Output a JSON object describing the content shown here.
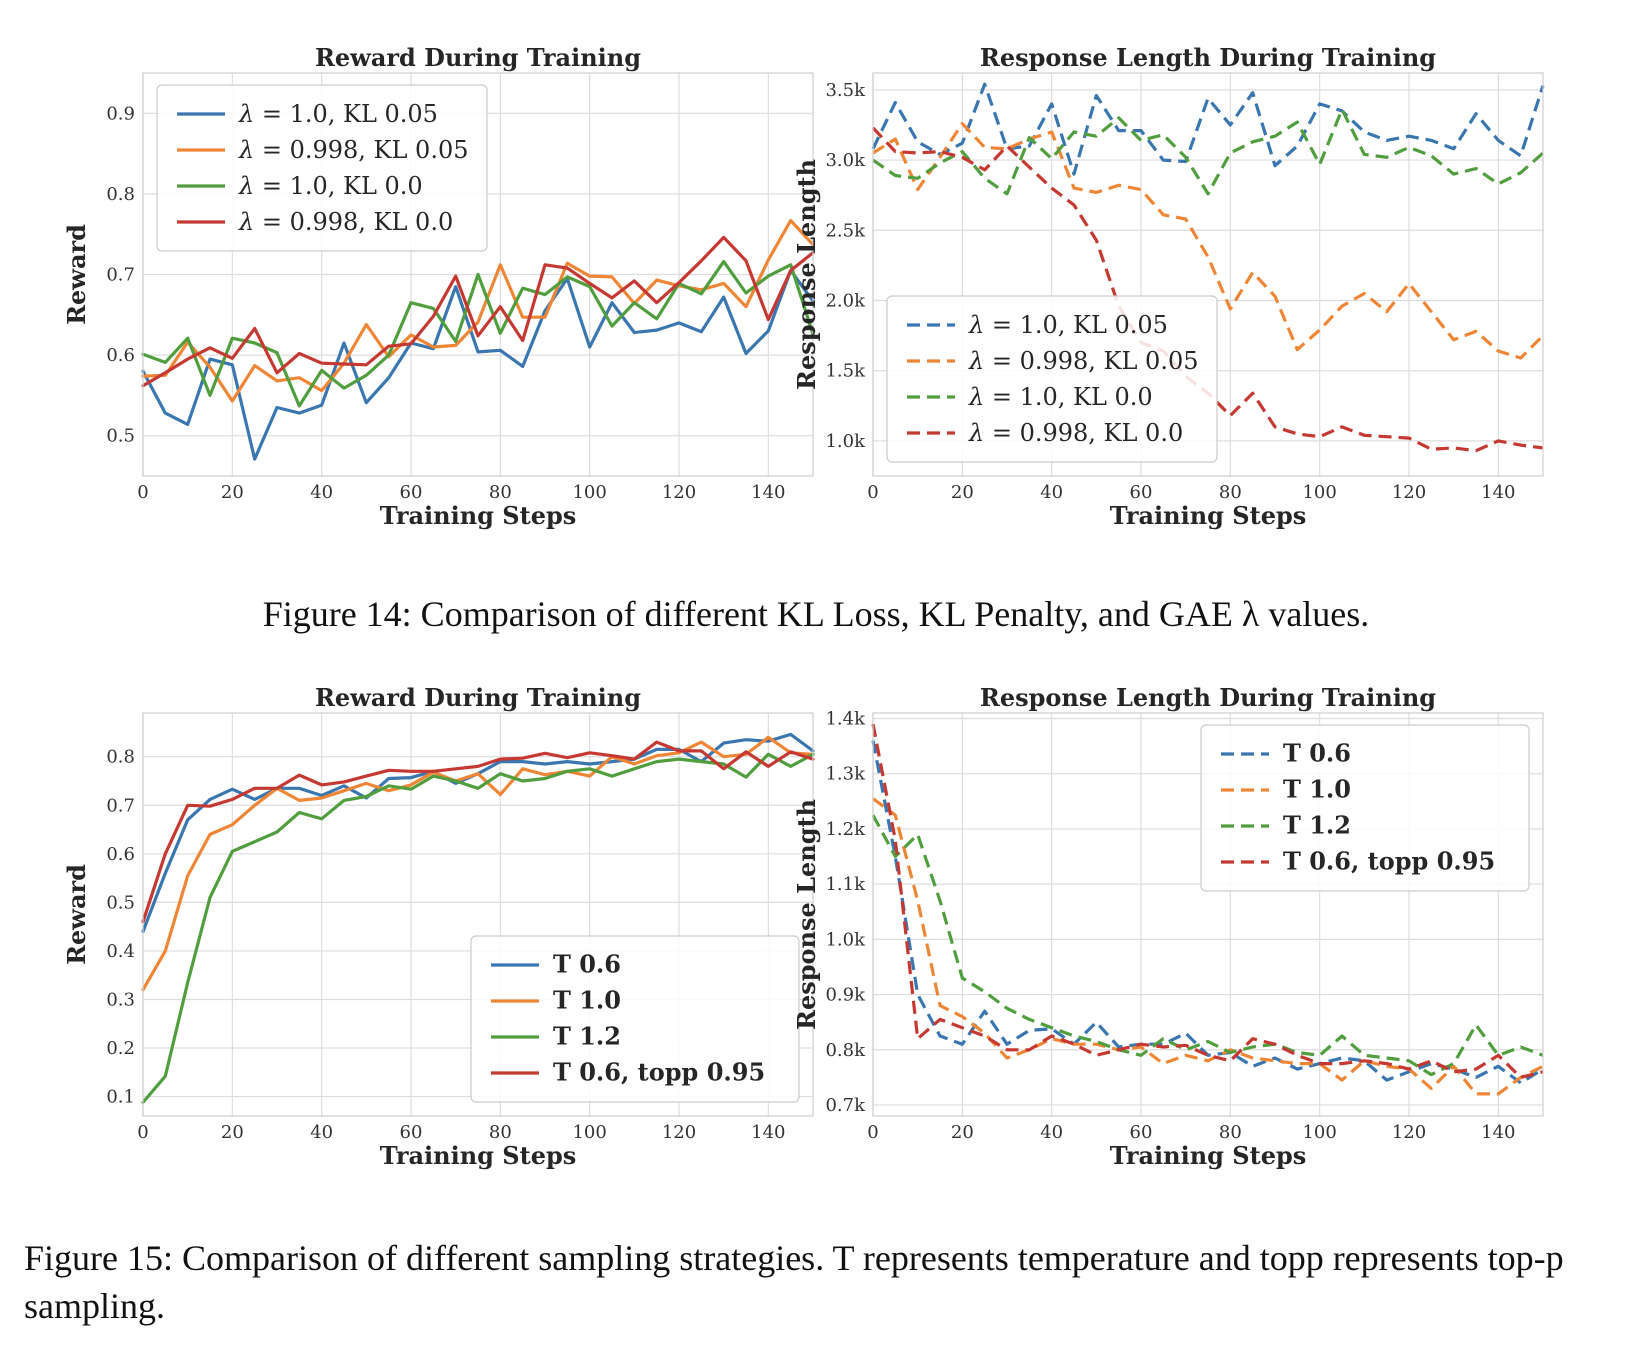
{
  "figures": [
    {
      "caption": "Figure 14: Comparison of different KL Loss, KL Penalty, and GAE λ values."
    },
    {
      "caption": "Figure 15: Comparison of different sampling strategies. T represents temperature and topp represents top-p sampling."
    }
  ],
  "colors": {
    "blue": "#3a76af",
    "orange": "#ef8636",
    "green": "#519e3e",
    "red": "#c53932"
  },
  "chart_data": [
    {
      "type": "line",
      "title": "Reward During Training",
      "xlabel": "Training Steps",
      "ylabel": "Reward",
      "xlim": [
        0,
        150
      ],
      "ylim": [
        0.45,
        0.95
      ],
      "xticks": [
        0,
        20,
        40,
        60,
        80,
        100,
        120,
        140
      ],
      "yticks": [
        0.5,
        0.6,
        0.7,
        0.8,
        0.9
      ],
      "ytick_labels": [
        "0.5",
        "0.6",
        "0.7",
        "0.8",
        "0.9"
      ],
      "grid": true,
      "legend_position": "top-left",
      "legend_style": "mixed",
      "x": [
        0,
        5,
        10,
        15,
        20,
        25,
        30,
        35,
        40,
        45,
        50,
        55,
        60,
        65,
        70,
        75,
        80,
        85,
        90,
        95,
        100,
        105,
        110,
        115,
        120,
        125,
        130,
        135,
        140,
        145,
        150
      ],
      "series": [
        {
          "name": "λ = 1.0, KL 0.05",
          "color": "#3a76af",
          "dash": false,
          "values": [
            0.58,
            0.528,
            0.514,
            0.595,
            0.588,
            0.471,
            0.535,
            0.528,
            0.538,
            0.615,
            0.541,
            0.572,
            0.615,
            0.608,
            0.685,
            0.604,
            0.606,
            0.586,
            0.655,
            0.695,
            0.61,
            0.665,
            0.628,
            0.631,
            0.64,
            0.629,
            0.672,
            0.602,
            0.63,
            0.705,
            0.667
          ]
        },
        {
          "name": "λ = 0.998, KL 0.05",
          "color": "#ef8636",
          "dash": false,
          "values": [
            0.574,
            0.575,
            0.616,
            0.585,
            0.543,
            0.587,
            0.568,
            0.572,
            0.556,
            0.59,
            0.638,
            0.598,
            0.625,
            0.61,
            0.612,
            0.641,
            0.712,
            0.647,
            0.647,
            0.714,
            0.698,
            0.697,
            0.664,
            0.693,
            0.686,
            0.681,
            0.689,
            0.66,
            0.718,
            0.767,
            0.737
          ]
        },
        {
          "name": "λ = 1.0, KL 0.0",
          "color": "#519e3e",
          "dash": false,
          "values": [
            0.601,
            0.591,
            0.621,
            0.55,
            0.621,
            0.615,
            0.603,
            0.537,
            0.581,
            0.559,
            0.575,
            0.6,
            0.665,
            0.658,
            0.617,
            0.7,
            0.627,
            0.683,
            0.675,
            0.697,
            0.685,
            0.636,
            0.665,
            0.645,
            0.689,
            0.676,
            0.716,
            0.677,
            0.698,
            0.712,
            0.626
          ]
        },
        {
          "name": "λ = 0.998, KL 0.0",
          "color": "#c53932",
          "dash": false,
          "values": [
            0.562,
            0.578,
            0.595,
            0.609,
            0.596,
            0.633,
            0.578,
            0.602,
            0.59,
            0.589,
            0.588,
            0.611,
            0.614,
            0.648,
            0.698,
            0.624,
            0.66,
            0.618,
            0.712,
            0.708,
            0.689,
            0.671,
            0.692,
            0.665,
            0.69,
            0.717,
            0.746,
            0.717,
            0.644,
            0.705,
            0.727
          ]
        }
      ]
    },
    {
      "type": "line",
      "title": "Response Length During Training",
      "xlabel": "Training Steps",
      "ylabel": "Response Length",
      "xlim": [
        0,
        150
      ],
      "ylim": [
        750,
        3620
      ],
      "xticks": [
        0,
        20,
        40,
        60,
        80,
        100,
        120,
        140
      ],
      "yticks": [
        1000,
        1500,
        2000,
        2500,
        3000,
        3500
      ],
      "ytick_labels": [
        "1.0k",
        "1.5k",
        "2.0k",
        "2.5k",
        "3.0k",
        "3.5k"
      ],
      "grid": true,
      "legend_position": "bottom-left",
      "legend_style": "mixed",
      "x": [
        0,
        5,
        10,
        15,
        20,
        25,
        30,
        35,
        40,
        45,
        50,
        55,
        60,
        65,
        70,
        75,
        80,
        85,
        90,
        95,
        100,
        105,
        110,
        115,
        120,
        125,
        130,
        135,
        140,
        145,
        150
      ],
      "series": [
        {
          "name": "λ = 1.0, KL 0.05",
          "color": "#3a76af",
          "dash": true,
          "values": [
            3080,
            3410,
            3130,
            3040,
            3120,
            3540,
            3080,
            3100,
            3400,
            2900,
            3460,
            3210,
            3210,
            3000,
            2990,
            3440,
            3250,
            3480,
            2960,
            3100,
            3400,
            3350,
            3200,
            3140,
            3170,
            3140,
            3080,
            3330,
            3140,
            3030,
            3530
          ]
        },
        {
          "name": "λ = 0.998, KL 0.05",
          "color": "#ef8636",
          "dash": true,
          "values": [
            3050,
            3150,
            2790,
            3020,
            3260,
            3090,
            3080,
            3150,
            3200,
            2800,
            2770,
            2820,
            2790,
            2610,
            2580,
            2310,
            1940,
            2200,
            2030,
            1650,
            1790,
            1960,
            2050,
            1920,
            2120,
            1920,
            1720,
            1780,
            1640,
            1590,
            1750
          ]
        },
        {
          "name": "λ = 1.0, KL 0.0",
          "color": "#519e3e",
          "dash": true,
          "values": [
            3000,
            2890,
            2870,
            2980,
            3060,
            2870,
            2760,
            3160,
            3010,
            3200,
            3170,
            3300,
            3140,
            3180,
            3020,
            2760,
            3050,
            3130,
            3170,
            3270,
            2970,
            3360,
            3040,
            3020,
            3090,
            3030,
            2900,
            2940,
            2830,
            2910,
            3050
          ]
        },
        {
          "name": "λ = 0.998, KL 0.0",
          "color": "#c53932",
          "dash": true,
          "values": [
            3230,
            3060,
            3050,
            3060,
            3020,
            2930,
            3100,
            2950,
            2800,
            2680,
            2430,
            1960,
            1700,
            1640,
            1460,
            1340,
            1180,
            1340,
            1100,
            1050,
            1030,
            1100,
            1040,
            1030,
            1020,
            940,
            950,
            930,
            1000,
            970,
            950
          ]
        }
      ]
    },
    {
      "type": "line",
      "title": "Reward During Training",
      "xlabel": "Training Steps",
      "ylabel": "Reward",
      "xlim": [
        0,
        150
      ],
      "ylim": [
        0.06,
        0.89
      ],
      "xticks": [
        0,
        20,
        40,
        60,
        80,
        100,
        120,
        140
      ],
      "yticks": [
        0.1,
        0.2,
        0.3,
        0.4,
        0.5,
        0.6,
        0.7,
        0.8
      ],
      "ytick_labels": [
        "0.1",
        "0.2",
        "0.3",
        "0.4",
        "0.5",
        "0.6",
        "0.7",
        "0.8"
      ],
      "grid": true,
      "legend_position": "bottom-right",
      "legend_style": "bold",
      "x": [
        0,
        5,
        10,
        15,
        20,
        25,
        30,
        35,
        40,
        45,
        50,
        55,
        60,
        65,
        70,
        75,
        80,
        85,
        90,
        95,
        100,
        105,
        110,
        115,
        120,
        125,
        130,
        135,
        140,
        145,
        150
      ],
      "series": [
        {
          "name": "T 0.6",
          "color": "#3a76af",
          "dash": false,
          "values": [
            0.44,
            0.56,
            0.67,
            0.712,
            0.733,
            0.712,
            0.735,
            0.735,
            0.72,
            0.74,
            0.715,
            0.755,
            0.757,
            0.77,
            0.745,
            0.765,
            0.79,
            0.79,
            0.785,
            0.79,
            0.785,
            0.79,
            0.795,
            0.815,
            0.815,
            0.79,
            0.828,
            0.835,
            0.832,
            0.846,
            0.812
          ]
        },
        {
          "name": "T 1.0",
          "color": "#ef8636",
          "dash": false,
          "values": [
            0.32,
            0.4,
            0.555,
            0.64,
            0.66,
            0.7,
            0.735,
            0.71,
            0.715,
            0.73,
            0.745,
            0.73,
            0.742,
            0.768,
            0.75,
            0.765,
            0.722,
            0.775,
            0.763,
            0.77,
            0.76,
            0.8,
            0.785,
            0.802,
            0.808,
            0.83,
            0.8,
            0.805,
            0.84,
            0.808,
            0.805
          ]
        },
        {
          "name": "T 1.2",
          "color": "#519e3e",
          "dash": false,
          "values": [
            0.088,
            0.142,
            0.335,
            0.51,
            0.605,
            0.625,
            0.645,
            0.685,
            0.672,
            0.71,
            0.718,
            0.74,
            0.733,
            0.76,
            0.75,
            0.735,
            0.765,
            0.75,
            0.755,
            0.77,
            0.775,
            0.76,
            0.775,
            0.79,
            0.795,
            0.79,
            0.785,
            0.758,
            0.805,
            0.78,
            0.805
          ]
        },
        {
          "name": "T 0.6, topp 0.95",
          "color": "#c53932",
          "dash": false,
          "values": [
            0.46,
            0.6,
            0.7,
            0.698,
            0.712,
            0.735,
            0.735,
            0.762,
            0.742,
            0.748,
            0.76,
            0.772,
            0.77,
            0.77,
            0.775,
            0.78,
            0.795,
            0.797,
            0.807,
            0.798,
            0.808,
            0.802,
            0.795,
            0.83,
            0.812,
            0.812,
            0.775,
            0.81,
            0.78,
            0.81,
            0.795
          ]
        }
      ]
    },
    {
      "type": "line",
      "title": "Response Length During Training",
      "xlabel": "Training Steps",
      "ylabel": "Response Length",
      "xlim": [
        0,
        150
      ],
      "ylim": [
        680,
        1410
      ],
      "xticks": [
        0,
        20,
        40,
        60,
        80,
        100,
        120,
        140
      ],
      "yticks": [
        700,
        800,
        900,
        1000,
        1100,
        1200,
        1300,
        1400
      ],
      "ytick_labels": [
        "0.7k",
        "0.8k",
        "0.9k",
        "1.0k",
        "1.1k",
        "1.2k",
        "1.3k",
        "1.4k"
      ],
      "grid": true,
      "legend_position": "top-right",
      "legend_style": "bold",
      "x": [
        0,
        5,
        10,
        15,
        20,
        25,
        30,
        35,
        40,
        45,
        50,
        55,
        60,
        65,
        70,
        75,
        80,
        85,
        90,
        95,
        100,
        105,
        110,
        115,
        120,
        125,
        130,
        135,
        140,
        145,
        150
      ],
      "series": [
        {
          "name": "T 0.6",
          "color": "#3a76af",
          "dash": true,
          "values": [
            1360,
            1150,
            900,
            825,
            810,
            870,
            810,
            835,
            838,
            810,
            850,
            805,
            810,
            810,
            830,
            790,
            795,
            770,
            785,
            765,
            775,
            785,
            780,
            745,
            760,
            775,
            765,
            750,
            770,
            740,
            765
          ]
        },
        {
          "name": "T 1.0",
          "color": "#ef8636",
          "dash": true,
          "values": [
            1255,
            1225,
            1070,
            880,
            860,
            830,
            785,
            800,
            820,
            810,
            810,
            800,
            805,
            775,
            790,
            780,
            800,
            785,
            780,
            775,
            775,
            745,
            780,
            770,
            765,
            730,
            770,
            720,
            720,
            750,
            770
          ]
        },
        {
          "name": "T 1.2",
          "color": "#519e3e",
          "dash": true,
          "values": [
            1225,
            1150,
            1190,
            1070,
            930,
            905,
            875,
            855,
            840,
            825,
            815,
            800,
            790,
            820,
            800,
            815,
            795,
            805,
            810,
            795,
            790,
            825,
            790,
            785,
            780,
            755,
            775,
            845,
            790,
            805,
            790
          ]
        },
        {
          "name": "T 0.6, topp 0.95",
          "color": "#c53932",
          "dash": true,
          "values": [
            1390,
            1180,
            820,
            855,
            840,
            825,
            800,
            800,
            825,
            810,
            790,
            800,
            810,
            805,
            808,
            790,
            780,
            820,
            810,
            790,
            775,
            775,
            780,
            775,
            765,
            780,
            760,
            765,
            790,
            750,
            760
          ]
        }
      ]
    }
  ]
}
